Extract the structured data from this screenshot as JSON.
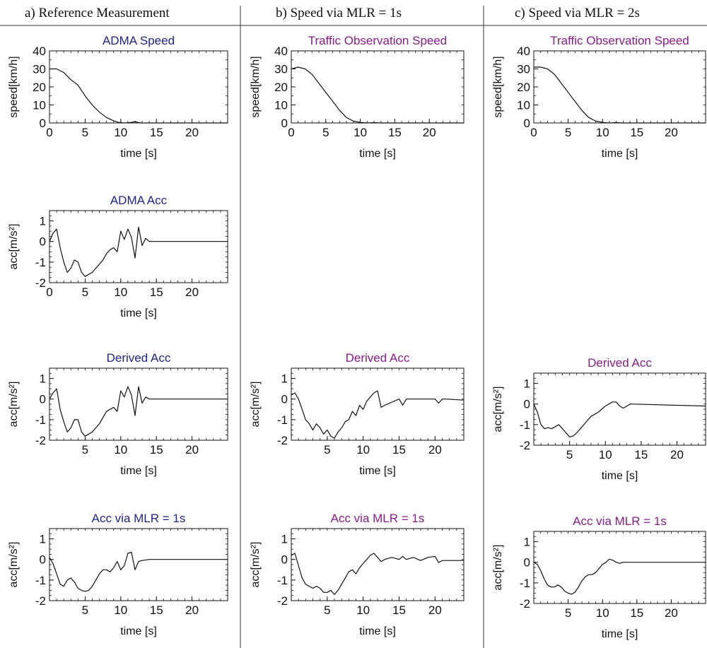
{
  "colors": {
    "blue": "#1f1f8f",
    "purple": "#8b1a8b",
    "ink": "#111111"
  },
  "columns": [
    {
      "header": "a) Reference Measurement"
    },
    {
      "header": "b) Speed via MLR = 1s"
    },
    {
      "header": "c) Speed via MLR = 2s"
    }
  ],
  "chart_data": [
    {
      "id": "a-speed",
      "type": "line",
      "title": "ADMA  Speed",
      "title_color": "blue",
      "xlabel": "time [s]",
      "ylabel": "speed[km/h]",
      "xlim": [
        0,
        25
      ],
      "ylim": [
        0,
        40
      ],
      "xticks": [
        0,
        5,
        10,
        15,
        20
      ],
      "yticks": [
        0,
        10,
        20,
        30,
        40
      ],
      "series": [
        {
          "x": [
            0,
            1,
            2,
            3,
            4,
            5,
            6,
            7,
            8,
            9,
            9.7,
            10.5,
            11.5,
            12,
            12.5,
            13,
            25
          ],
          "y": [
            30,
            30,
            28,
            24,
            21,
            15,
            10,
            6,
            3,
            1.2,
            0.3,
            0,
            0.3,
            0.8,
            0.2,
            0,
            0
          ]
        }
      ]
    },
    {
      "id": "a-acc",
      "type": "line",
      "title": "ADMA Acc",
      "title_color": "blue",
      "xlabel": "time [s]",
      "ylabel": "acc[m/s²]",
      "xlim": [
        0,
        25
      ],
      "ylim": [
        -2,
        1.5
      ],
      "xticks": [
        0,
        5,
        10,
        15,
        20
      ],
      "yticks": [
        -2,
        -1,
        0,
        1
      ],
      "series": [
        {
          "x": [
            0,
            0.5,
            1,
            1.5,
            2,
            2.5,
            3,
            3.5,
            4,
            4.5,
            5,
            5.5,
            6,
            6.5,
            7,
            7.5,
            8,
            8.5,
            9,
            9.5,
            10,
            10.5,
            11,
            11.5,
            12,
            12.5,
            13,
            13.5,
            14,
            15,
            25
          ],
          "y": [
            0,
            0.4,
            0.6,
            -0.3,
            -1.0,
            -1.5,
            -1.3,
            -0.9,
            -1.0,
            -1.5,
            -1.7,
            -1.6,
            -1.5,
            -1.3,
            -1.1,
            -0.9,
            -0.6,
            -0.4,
            -0.3,
            -0.5,
            0.5,
            0.1,
            0.6,
            0.2,
            -0.8,
            0.7,
            -0.2,
            0.15,
            0,
            0,
            0
          ]
        }
      ]
    },
    {
      "id": "a-derived",
      "type": "line",
      "title": "Derived Acc",
      "title_color": "blue",
      "xlabel": "time [s]",
      "ylabel": "acc[m/s²]",
      "xlim": [
        0,
        25
      ],
      "ylim": [
        -2,
        1.5
      ],
      "xticks": [
        5,
        10,
        15,
        20
      ],
      "yticks": [
        -2,
        -1,
        0,
        1
      ],
      "series": [
        {
          "x": [
            0,
            0.5,
            1,
            1.5,
            2,
            2.5,
            3,
            3.5,
            4,
            4.5,
            5,
            5.5,
            6,
            6.5,
            7,
            7.5,
            8,
            8.5,
            9,
            9.5,
            10,
            10.5,
            11,
            11.5,
            12,
            12.5,
            13,
            13.5,
            14,
            15,
            25
          ],
          "y": [
            0,
            0.3,
            0.5,
            -0.5,
            -1.1,
            -1.6,
            -1.4,
            -1.0,
            -1.0,
            -1.6,
            -1.8,
            -1.7,
            -1.6,
            -1.4,
            -1.2,
            -0.9,
            -0.6,
            -0.5,
            -0.4,
            -0.6,
            0.4,
            0.1,
            0.6,
            0.2,
            -0.8,
            0.6,
            -0.2,
            0.1,
            0,
            0,
            0
          ]
        }
      ]
    },
    {
      "id": "a-mlr",
      "type": "line",
      "title": "Acc via MLR = 1s",
      "title_color": "blue",
      "xlabel": "time [s]",
      "ylabel": "acc[m/s²]",
      "xlim": [
        0,
        25
      ],
      "ylim": [
        -2,
        1.5
      ],
      "xticks": [
        5,
        10,
        15,
        20
      ],
      "yticks": [
        -2,
        -1,
        0,
        1
      ],
      "series": [
        {
          "x": [
            0,
            0.5,
            1,
            1.5,
            2,
            2.5,
            3,
            3.5,
            4,
            4.5,
            5,
            5.5,
            6,
            6.5,
            7,
            7.5,
            8,
            8.5,
            9,
            9.5,
            10,
            10.5,
            11,
            11.5,
            12,
            12.5,
            13,
            14,
            25
          ],
          "y": [
            0.1,
            -0.2,
            -0.7,
            -1.2,
            -1.3,
            -1.0,
            -0.9,
            -1.1,
            -1.4,
            -1.5,
            -1.55,
            -1.5,
            -1.3,
            -1.0,
            -0.7,
            -0.5,
            -0.5,
            -0.6,
            -0.4,
            -0.1,
            -0.5,
            -0.3,
            0.3,
            0.35,
            -0.5,
            -0.1,
            -0.05,
            0,
            0
          ]
        }
      ]
    },
    {
      "id": "b-speed",
      "type": "line",
      "title": "Traffic  Observation Speed",
      "title_color": "purple",
      "xlabel": "time [s]",
      "ylabel": "speed[km/h]",
      "xlim": [
        0,
        25
      ],
      "ylim": [
        0,
        40
      ],
      "xticks": [
        0,
        5,
        10,
        15,
        20
      ],
      "yticks": [
        0,
        10,
        20,
        30,
        40
      ],
      "series": [
        {
          "x": [
            0,
            1,
            2,
            3,
            4,
            5,
            6,
            7,
            8,
            9,
            10,
            11,
            12,
            13,
            25
          ],
          "y": [
            30,
            31,
            30,
            27,
            22,
            17,
            12,
            7,
            3,
            1,
            0.3,
            0,
            0.2,
            0,
            0
          ]
        }
      ]
    },
    {
      "id": "b-derived",
      "type": "line",
      "title": "Derived Acc",
      "title_color": "purple",
      "xlabel": "time [s]",
      "ylabel": "acc[m/s²]",
      "xlim": [
        0,
        24
      ],
      "ylim": [
        -2,
        1.5
      ],
      "xticks": [
        5,
        10,
        15,
        20
      ],
      "yticks": [
        -2,
        -1,
        0,
        1
      ],
      "series": [
        {
          "x": [
            0,
            0.5,
            1,
            1.5,
            2,
            2.5,
            3,
            3.5,
            4,
            4.5,
            5,
            5.5,
            6,
            6.5,
            7,
            7.5,
            8,
            8.5,
            9,
            9.5,
            10,
            10.5,
            11,
            11.5,
            12,
            12.5,
            13,
            15,
            15.5,
            16,
            16.5,
            20,
            20.5,
            21,
            21.5,
            24
          ],
          "y": [
            0.2,
            0.3,
            0,
            -0.5,
            -1.0,
            -1.2,
            -1.5,
            -1.2,
            -1.4,
            -1.7,
            -1.5,
            -1.8,
            -1.9,
            -1.6,
            -1.4,
            -1.1,
            -1.0,
            -0.6,
            -0.8,
            -0.3,
            -0.5,
            -0.1,
            0.1,
            0.3,
            0.4,
            -0.4,
            -0.3,
            0,
            -0.3,
            0,
            0,
            0,
            -0.2,
            0,
            0,
            -0.05
          ]
        }
      ]
    },
    {
      "id": "b-mlr",
      "type": "line",
      "title": "Acc via MLR = 1s",
      "title_color": "purple",
      "xlabel": "time [s]",
      "ylabel": "acc[m/s²]",
      "xlim": [
        0,
        24
      ],
      "ylim": [
        -2,
        1.5
      ],
      "xticks": [
        5,
        10,
        15,
        20
      ],
      "yticks": [
        -2,
        -1,
        0,
        1
      ],
      "series": [
        {
          "x": [
            0,
            0.5,
            1,
            1.5,
            2,
            2.5,
            3,
            3.5,
            4,
            4.5,
            5,
            5.5,
            6,
            6.5,
            7,
            7.5,
            8,
            8.5,
            9,
            9.5,
            10,
            10.5,
            11,
            11.5,
            12,
            12.5,
            13,
            14,
            15,
            15.5,
            16,
            17,
            18,
            19,
            20,
            20.5,
            21,
            24
          ],
          "y": [
            0.2,
            0.3,
            -0.3,
            -0.9,
            -1.2,
            -1.3,
            -1.4,
            -1.3,
            -1.4,
            -1.6,
            -1.6,
            -1.5,
            -1.7,
            -1.5,
            -1.2,
            -0.9,
            -0.6,
            -0.5,
            -0.7,
            -0.4,
            -0.2,
            0,
            0.2,
            0.3,
            0.1,
            -0.1,
            0,
            0.1,
            0,
            0.15,
            0,
            0.1,
            -0.05,
            0.1,
            0.15,
            -0.15,
            -0.05,
            -0.05
          ]
        }
      ]
    },
    {
      "id": "c-speed",
      "type": "line",
      "title": "Traffic  Observation Speed",
      "title_color": "purple",
      "xlabel": "time [s]",
      "ylabel": "speed[km/h]",
      "xlim": [
        0,
        25
      ],
      "ylim": [
        0,
        40
      ],
      "xticks": [
        0,
        5,
        10,
        15,
        20
      ],
      "yticks": [
        0,
        10,
        20,
        30,
        40
      ],
      "series": [
        {
          "x": [
            0,
            1,
            2,
            3,
            4,
            5,
            6,
            7,
            8,
            9,
            10,
            11,
            12,
            13,
            25
          ],
          "y": [
            31,
            31,
            30,
            27,
            22,
            17,
            12,
            7,
            3,
            1,
            0.3,
            0,
            0.2,
            0,
            0
          ]
        }
      ]
    },
    {
      "id": "c-derived",
      "type": "line",
      "title": "Derived Acc",
      "title_color": "purple",
      "xlabel": "time [s]",
      "ylabel": "acc[m/s²]",
      "xlim": [
        0,
        24
      ],
      "ylim": [
        -2,
        1.5
      ],
      "xticks": [
        5,
        10,
        15,
        20
      ],
      "yticks": [
        -2,
        -1,
        0,
        1
      ],
      "series": [
        {
          "x": [
            0,
            0.5,
            1,
            1.5,
            2,
            2.5,
            3,
            3.5,
            4,
            4.5,
            5,
            5.5,
            6,
            6.5,
            7,
            7.5,
            8,
            8.5,
            9,
            9.5,
            10,
            10.5,
            11,
            11.5,
            12,
            12.5,
            13,
            13.5,
            24
          ],
          "y": [
            0,
            -0.4,
            -1.0,
            -1.2,
            -1.15,
            -1.2,
            -1.1,
            -1.0,
            -1.2,
            -1.4,
            -1.6,
            -1.55,
            -1.4,
            -1.2,
            -1.0,
            -0.8,
            -0.6,
            -0.5,
            -0.4,
            -0.25,
            -0.1,
            0,
            0.1,
            0.1,
            -0.1,
            -0.2,
            -0.1,
            0,
            -0.1
          ]
        }
      ]
    },
    {
      "id": "c-mlr",
      "type": "line",
      "title": "Acc via MLR = 1s",
      "title_color": "purple",
      "xlabel": "time [s]",
      "ylabel": "acc[m/s²]",
      "xlim": [
        0,
        25
      ],
      "ylim": [
        -2,
        1.5
      ],
      "xticks": [
        5,
        10,
        15,
        20
      ],
      "yticks": [
        -2,
        -1,
        0,
        1
      ],
      "series": [
        {
          "x": [
            0,
            0.5,
            1,
            1.5,
            2,
            2.5,
            3,
            3.5,
            4,
            4.5,
            5,
            5.5,
            6,
            6.5,
            7,
            7.5,
            8,
            8.5,
            9,
            9.5,
            10,
            10.5,
            11,
            11.5,
            12,
            12.5,
            13,
            13.5,
            14,
            25
          ],
          "y": [
            0,
            -0.1,
            -0.4,
            -0.8,
            -1.1,
            -1.2,
            -1.2,
            -1.1,
            -1.2,
            -1.4,
            -1.5,
            -1.55,
            -1.45,
            -1.2,
            -0.9,
            -0.7,
            -0.6,
            -0.6,
            -0.5,
            -0.3,
            -0.1,
            0,
            0.15,
            0.1,
            0,
            -0.05,
            0,
            0,
            0,
            0
          ]
        }
      ]
    }
  ]
}
